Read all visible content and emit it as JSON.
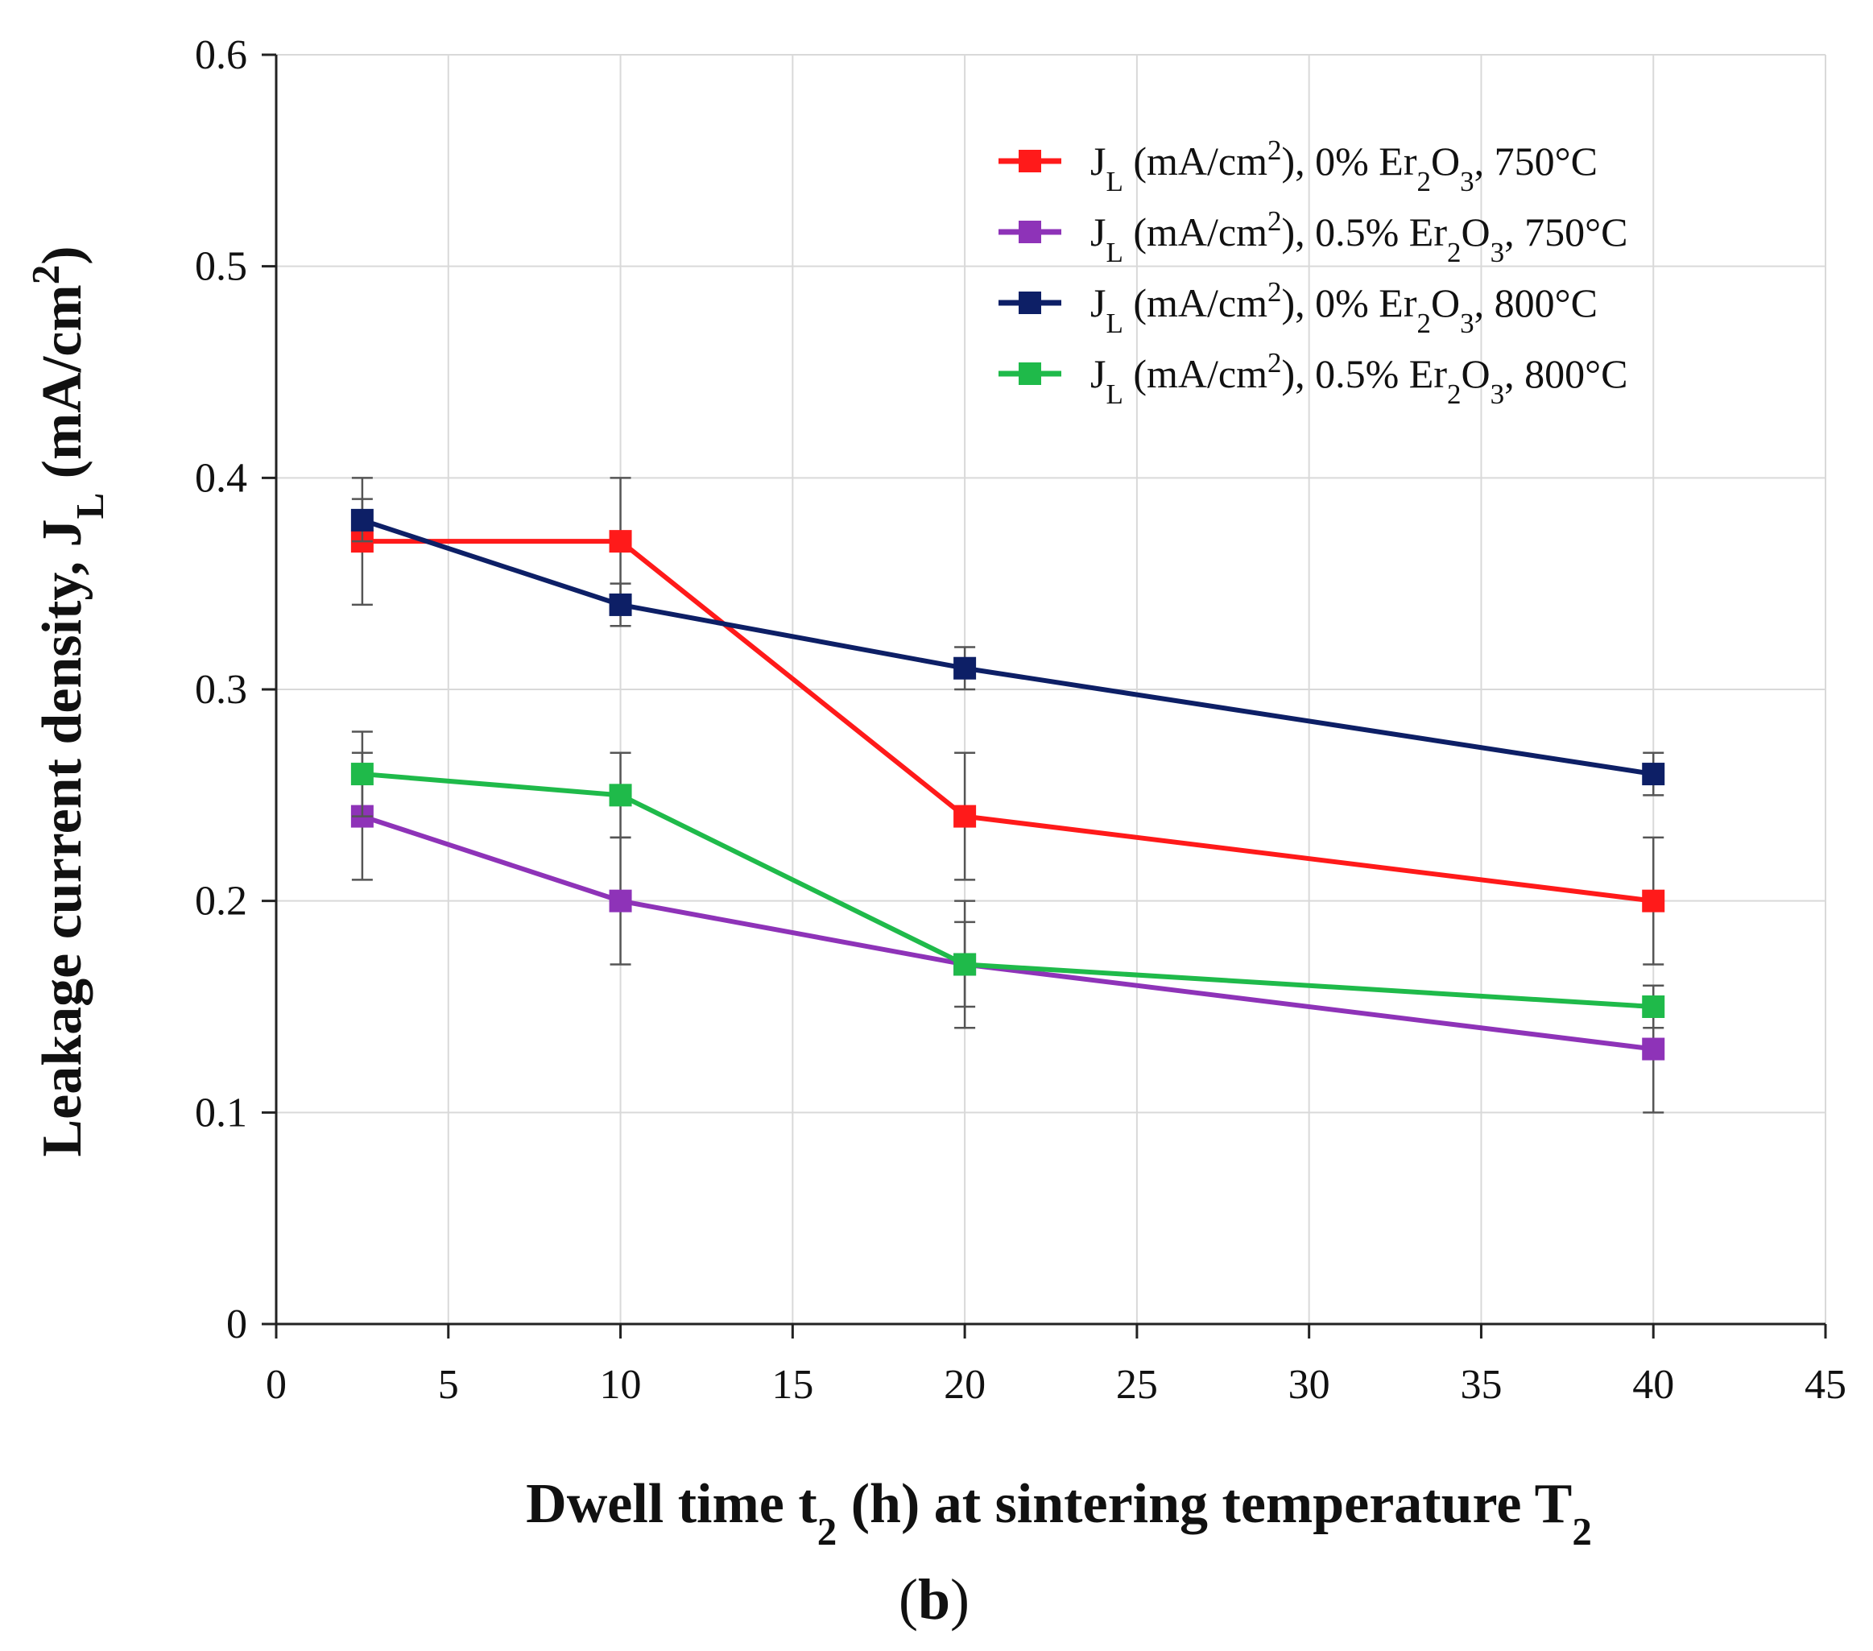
{
  "chart_data": {
    "type": "line",
    "xlabel": {
      "parts": [
        {
          "text": "Dwell time t"
        },
        {
          "text": "2",
          "sub": true
        },
        {
          "text": " (h) at sintering temperature T"
        },
        {
          "text": "2",
          "sub": true
        }
      ]
    },
    "ylabel": {
      "parts": [
        {
          "text": "Leakage current density, J"
        },
        {
          "text": "L",
          "sub": true
        },
        {
          "text": " (mA/cm"
        },
        {
          "text": "2",
          "sup": true
        },
        {
          "text": ")"
        }
      ]
    },
    "xlim": [
      0,
      45
    ],
    "ylim": [
      0,
      0.6
    ],
    "xticks": [
      0,
      5,
      10,
      15,
      20,
      25,
      30,
      35,
      40,
      45
    ],
    "yticks": [
      0,
      0.1,
      0.2,
      0.3,
      0.4,
      0.5,
      0.6
    ],
    "xtick_labels": [
      "0",
      "5",
      "10",
      "15",
      "20",
      "25",
      "30",
      "35",
      "40",
      "45"
    ],
    "ytick_labels": [
      "0",
      "0.1",
      "0.2",
      "0.3",
      "0.4",
      "0.5",
      "0.6"
    ],
    "grid": true,
    "legend_position": "top-right",
    "panel_label": "b",
    "series": [
      {
        "name": "J_L (mA/cm2), 0% Er2O3, 750°C",
        "label_parts": [
          {
            "text": "J"
          },
          {
            "text": "L",
            "sub": true
          },
          {
            "text": " (mA/cm"
          },
          {
            "text": "2",
            "sup": true
          },
          {
            "text": "), 0% Er"
          },
          {
            "text": "2",
            "sub": true
          },
          {
            "text": "O"
          },
          {
            "text": "3",
            "sub": true
          },
          {
            "text": ", 750°C"
          }
        ],
        "color": "#ff1a1a",
        "x": [
          2.5,
          10,
          20,
          40
        ],
        "y": [
          0.37,
          0.37,
          0.24,
          0.2
        ],
        "err": [
          0.03,
          0.03,
          0.03,
          0.03
        ]
      },
      {
        "name": "J_L (mA/cm2), 0.5% Er2O3, 750°C",
        "label_parts": [
          {
            "text": "J"
          },
          {
            "text": "L",
            "sub": true
          },
          {
            "text": " (mA/cm"
          },
          {
            "text": "2",
            "sup": true
          },
          {
            "text": "), 0.5% Er"
          },
          {
            "text": "2",
            "sub": true
          },
          {
            "text": "O"
          },
          {
            "text": "3",
            "sub": true
          },
          {
            "text": ", 750°C"
          }
        ],
        "color": "#8e33b8",
        "x": [
          2.5,
          10,
          20,
          40
        ],
        "y": [
          0.24,
          0.2,
          0.17,
          0.13
        ],
        "err": [
          0.03,
          0.03,
          0.03,
          0.03
        ]
      },
      {
        "name": "J_L (mA/cm2), 0% Er2O3, 800°C",
        "label_parts": [
          {
            "text": "J"
          },
          {
            "text": "L",
            "sub": true
          },
          {
            "text": " (mA/cm"
          },
          {
            "text": "2",
            "sup": true
          },
          {
            "text": "), 0% Er"
          },
          {
            "text": "2",
            "sub": true
          },
          {
            "text": "O"
          },
          {
            "text": "3",
            "sub": true
          },
          {
            "text": ", 800°C"
          }
        ],
        "color": "#0d1f66",
        "x": [
          2.5,
          10,
          20,
          40
        ],
        "y": [
          0.38,
          0.34,
          0.31,
          0.26
        ],
        "err": [
          0.01,
          0.01,
          0.01,
          0.01
        ]
      },
      {
        "name": "J_L (mA/cm2), 0.5% Er2O3, 800°C",
        "label_parts": [
          {
            "text": "J"
          },
          {
            "text": "L",
            "sub": true
          },
          {
            "text": " (mA/cm"
          },
          {
            "text": "2",
            "sup": true
          },
          {
            "text": "), 0.5% Er"
          },
          {
            "text": "2",
            "sub": true
          },
          {
            "text": "O"
          },
          {
            "text": "3",
            "sub": true
          },
          {
            "text": ", 800°C"
          }
        ],
        "color": "#1fba4a",
        "x": [
          2.5,
          10,
          20,
          40
        ],
        "y": [
          0.26,
          0.25,
          0.17,
          0.15
        ],
        "err": [
          0.02,
          0.02,
          0.02,
          0.01
        ]
      }
    ]
  }
}
